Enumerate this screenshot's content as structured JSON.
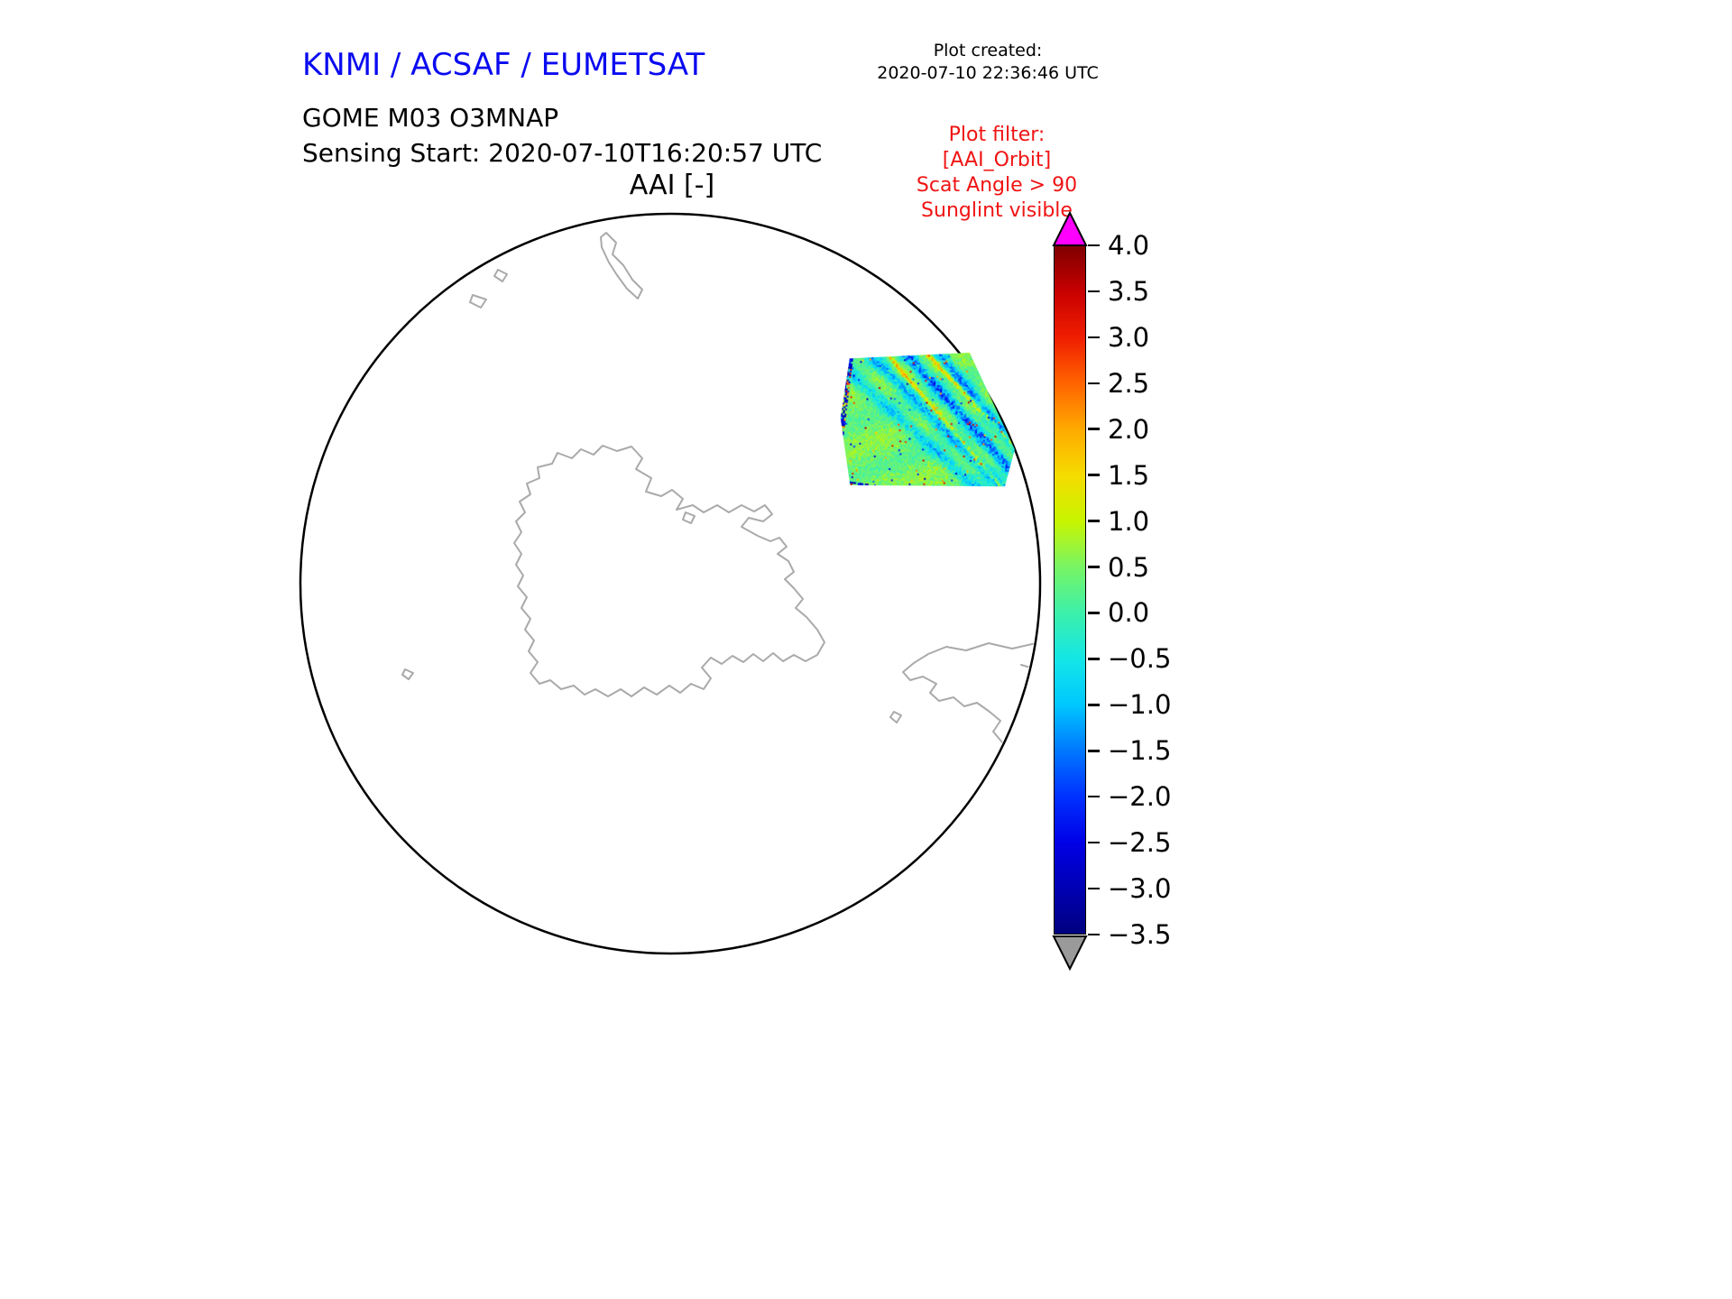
{
  "header": {
    "title": "KNMI / ACSAF / EUMETSAT",
    "title_color": "#0a0af0"
  },
  "plot_created": {
    "label": "Plot created:",
    "timestamp": "2020-07-10 22:36:46 UTC"
  },
  "product": {
    "name": "GOME M03 O3MNAP",
    "sensing_start_label": "Sensing Start: 2020-07-10T16:20:57 UTC"
  },
  "plot_filter": {
    "color": "#f01414",
    "lines": [
      "Plot filter:",
      "[AAI_Orbit]",
      "Scat Angle > 90",
      "Sunglint visible"
    ]
  },
  "chart_data": {
    "type": "heatmap",
    "title": "AAI [-]",
    "projection": "south polar stereographic",
    "map": {
      "outline_color": "#000000",
      "coastline_color": "#aaaaaa",
      "description": "Antarctica centered in a circular south-polar view; southern South America and small islands near the circle edge"
    },
    "colorbar": {
      "label": "AAI [-]",
      "min": -3.5,
      "max": 4.0,
      "ticks": [
        "4.0",
        "3.5",
        "3.0",
        "2.5",
        "2.0",
        "1.5",
        "1.0",
        "0.5",
        "0.0",
        "−0.5",
        "−1.0",
        "−1.5",
        "−2.0",
        "−2.5",
        "−3.0",
        "−3.5"
      ],
      "over_color": "#ff00ff",
      "under_color": "#9a9a9a",
      "stops": [
        {
          "value": -3.5,
          "color": "#00007f"
        },
        {
          "value": -3.0,
          "color": "#0000b4"
        },
        {
          "value": -2.5,
          "color": "#0000e6"
        },
        {
          "value": -2.0,
          "color": "#0032ff"
        },
        {
          "value": -1.5,
          "color": "#0078ff"
        },
        {
          "value": -1.0,
          "color": "#00c8ff"
        },
        {
          "value": -0.5,
          "color": "#14e6e6"
        },
        {
          "value": 0.0,
          "color": "#3cf0aa"
        },
        {
          "value": 0.5,
          "color": "#78f564"
        },
        {
          "value": 1.0,
          "color": "#c8f500"
        },
        {
          "value": 1.5,
          "color": "#f5dc00"
        },
        {
          "value": 2.0,
          "color": "#ffaa00"
        },
        {
          "value": 2.5,
          "color": "#ff6400"
        },
        {
          "value": 3.0,
          "color": "#f01e00"
        },
        {
          "value": 3.5,
          "color": "#c80000"
        },
        {
          "value": 4.0,
          "color": "#7f0000"
        }
      ]
    },
    "swath": {
      "description": "Single GOME-2 orbit swath segment over the Southern Ocean in the upper-right of the polar map; mostly AAI 0 to 1 (green) with negative (blue) diagonal streaks, sparse positive (red/orange) speckles and noisy multicoloured swath edges",
      "approx_value_range": [
        -3.0,
        3.5
      ],
      "typical_value": 0.5,
      "texture_seed": 987654321
    }
  }
}
